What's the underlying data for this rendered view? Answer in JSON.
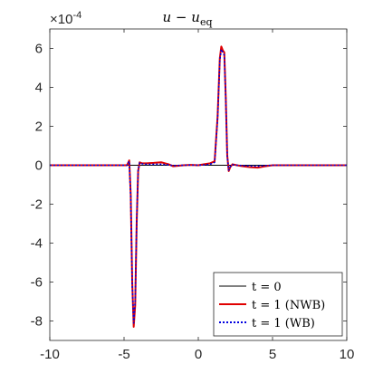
{
  "chart_data": {
    "type": "line",
    "title": "u − u",
    "title_subscript": "eq",
    "y_multiplier": "×10",
    "y_multiplier_exp": "-4",
    "xlim": [
      -10,
      10
    ],
    "ylim": [
      -9,
      7
    ],
    "xticks": [
      -10,
      -5,
      0,
      5,
      10
    ],
    "yticks": [
      -8,
      -6,
      -4,
      -2,
      0,
      2,
      4,
      6
    ],
    "xtick_labels": [
      "-10",
      "-5",
      "0",
      "5",
      "10"
    ],
    "ytick_labels": [
      "-8",
      "-6",
      "-4",
      "-2",
      "0",
      "2",
      "4",
      "6"
    ],
    "legend_placement": "bottom-right",
    "series": [
      {
        "name": "t = 0",
        "color": "#000000",
        "style": "solid",
        "x": [
          -10,
          10
        ],
        "y": [
          0,
          0
        ]
      },
      {
        "name": "t = 1 (NWB)",
        "color": "#e00000",
        "style": "solid",
        "x": [
          -10,
          -4.8,
          -4.65,
          -4.55,
          -4.45,
          -4.35,
          -4.25,
          -4.15,
          -4.05,
          -3.95,
          -3.8,
          -3.5,
          -3.0,
          -2.5,
          -2.0,
          -1.7,
          -1.0,
          -0.5,
          0,
          0.4,
          0.8,
          1.1,
          1.3,
          1.45,
          1.55,
          1.65,
          1.75,
          1.85,
          1.95,
          2.05,
          2.15,
          2.3,
          2.6,
          3.0,
          3.5,
          4.0,
          4.5,
          5.0,
          6.0,
          10
        ],
        "y": [
          0,
          0,
          0.25,
          -1.5,
          -6.0,
          -8.3,
          -7.2,
          -3.0,
          -0.3,
          0.15,
          0.1,
          0.1,
          0.12,
          0.15,
          0.05,
          -0.05,
          0,
          0.02,
          0,
          0.05,
          0.1,
          0.2,
          2.5,
          5.5,
          6.1,
          5.9,
          5.8,
          3.5,
          0.5,
          -0.3,
          -0.1,
          0.05,
          0,
          -0.05,
          -0.1,
          -0.12,
          -0.05,
          0,
          0,
          0
        ]
      },
      {
        "name": "t = 1 (WB)",
        "color": "#0000e0",
        "style": "dotted",
        "x": [
          -10,
          -4.8,
          -4.65,
          -4.55,
          -4.45,
          -4.35,
          -4.25,
          -4.15,
          -4.05,
          -3.95,
          -3.8,
          -3.5,
          -3.0,
          -2.5,
          -2.0,
          -1.7,
          -1.0,
          -0.5,
          0,
          0.4,
          0.8,
          1.1,
          1.3,
          1.45,
          1.55,
          1.65,
          1.75,
          1.85,
          1.95,
          2.05,
          2.15,
          2.3,
          2.6,
          3.0,
          3.5,
          4.0,
          4.5,
          5.0,
          6.0,
          10
        ],
        "y": [
          0,
          0,
          0.2,
          -1.6,
          -6.1,
          -8.1,
          -7.0,
          -2.9,
          -0.25,
          0.12,
          0.08,
          0.05,
          0.05,
          0.05,
          0.02,
          -0.02,
          0,
          0.01,
          0,
          0.02,
          0.05,
          0.15,
          2.4,
          5.4,
          5.95,
          5.8,
          5.65,
          3.4,
          0.45,
          -0.25,
          -0.08,
          0.03,
          0,
          -0.02,
          -0.04,
          -0.05,
          -0.02,
          0,
          0,
          0
        ]
      }
    ]
  }
}
